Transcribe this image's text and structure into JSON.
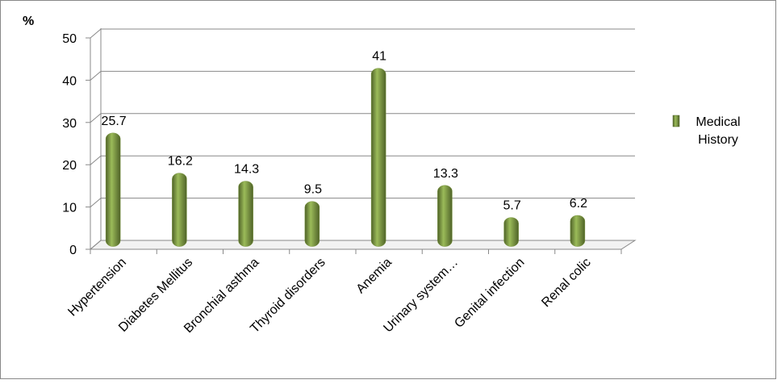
{
  "chart_data": {
    "type": "bar",
    "y_label": "%",
    "categories": [
      "Hypertension",
      "Diabetes Mellitus",
      "Bronchial asthma",
      "Thyroid disorders",
      "Anemia",
      "Urinary system…",
      "Genital infection",
      "Renal colic"
    ],
    "series": [
      {
        "name": "Medical History",
        "color": "#77933c",
        "values": [
          25.7,
          16.2,
          14.3,
          9.5,
          41,
          13.3,
          5.7,
          6.2
        ]
      }
    ],
    "ylim": [
      0,
      50
    ],
    "yticks": [
      0,
      10,
      20,
      30,
      40,
      50
    ],
    "grid": true
  }
}
